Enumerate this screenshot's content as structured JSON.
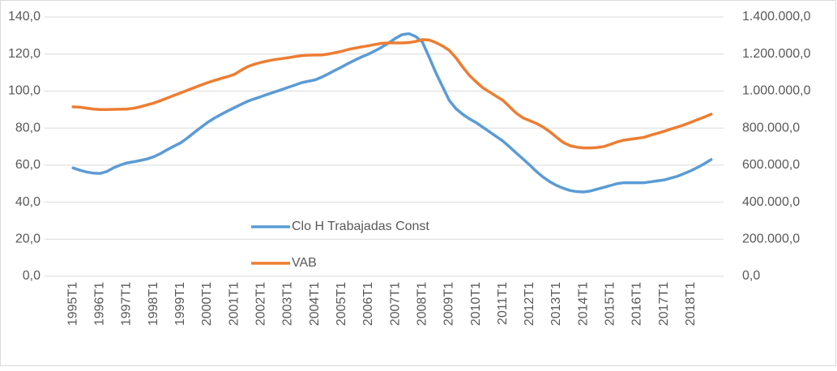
{
  "chart_data": {
    "type": "line",
    "categories": [
      "1995T1",
      null,
      null,
      null,
      "1996T1",
      null,
      null,
      null,
      "1997T1",
      null,
      null,
      null,
      "1998T1",
      null,
      null,
      null,
      "1999T1",
      null,
      null,
      null,
      "2000T1",
      null,
      null,
      null,
      "2001T1",
      null,
      null,
      null,
      "2002T1",
      null,
      null,
      null,
      "2003T1",
      null,
      null,
      null,
      "2004T1",
      null,
      null,
      null,
      "2005T1",
      null,
      null,
      null,
      "2006T1",
      null,
      null,
      null,
      "2007T1",
      null,
      null,
      null,
      "2008T1",
      null,
      null,
      null,
      "2009T1",
      null,
      null,
      null,
      "2010T1",
      null,
      null,
      null,
      "2011T1",
      null,
      null,
      null,
      "2012T1",
      null,
      null,
      null,
      "2013T1",
      null,
      null,
      null,
      "2014T1",
      null,
      null,
      null,
      "2015T1",
      null,
      null,
      null,
      "2016T1",
      null,
      null,
      null,
      "2017T1",
      null,
      null,
      null,
      "2018T1",
      null,
      null,
      null
    ],
    "series": [
      {
        "name": "Clo H Trabajadas Const",
        "color": "#5b9bd5",
        "values": [
          58.5,
          57.3,
          56.3,
          55.7,
          55.5,
          56.5,
          58.5,
          60.0,
          61.2,
          61.8,
          62.5,
          63.3,
          64.5,
          66.2,
          68.3,
          70.2,
          72.0,
          74.6,
          77.5,
          80.3,
          83.0,
          85.3,
          87.3,
          89.2,
          91.0,
          92.8,
          94.5,
          95.8,
          97.0,
          98.3,
          99.5,
          100.7,
          102.0,
          103.2,
          104.5,
          105.3,
          106.0,
          107.5,
          109.3,
          111.2,
          113.0,
          115.0,
          116.8,
          118.5,
          120.0,
          121.8,
          123.8,
          126.0,
          128.5,
          130.5,
          131.0,
          129.5,
          126.5,
          118.5,
          110.0,
          102.5,
          95.0,
          90.5,
          87.5,
          85.0,
          83.0,
          80.5,
          78.0,
          75.5,
          73.0,
          69.8,
          66.5,
          63.3,
          60.0,
          56.5,
          53.5,
          51.0,
          49.0,
          47.5,
          46.3,
          45.7,
          45.5,
          46.0,
          47.0,
          48.0,
          49.0,
          50.0,
          50.5,
          50.5,
          50.5,
          50.5,
          51.0,
          51.5,
          52.0,
          53.0,
          54.0,
          55.5,
          57.0,
          58.8,
          60.8,
          63.0
        ]
      },
      {
        "name": "VAB",
        "color": "#ed7d31",
        "axis": "y2",
        "values": [
          915000,
          913000,
          908000,
          903000,
          900000,
          900000,
          901000,
          902000,
          903000,
          907000,
          915000,
          925000,
          935000,
          948000,
          962000,
          976000,
          990000,
          1004000,
          1018000,
          1032000,
          1045000,
          1057000,
          1068000,
          1078000,
          1090000,
          1112000,
          1132000,
          1145000,
          1155000,
          1163000,
          1170000,
          1175000,
          1180000,
          1186000,
          1191000,
          1194000,
          1195000,
          1195000,
          1200000,
          1207000,
          1215000,
          1225000,
          1232000,
          1239000,
          1245000,
          1252000,
          1258000,
          1260000,
          1260000,
          1260000,
          1262000,
          1268000,
          1278000,
          1276000,
          1262000,
          1244000,
          1220000,
          1180000,
          1130000,
          1085000,
          1050000,
          1018000,
          995000,
          972000,
          950000,
          915000,
          880000,
          855000,
          840000,
          825000,
          805000,
          780000,
          750000,
          722000,
          705000,
          697000,
          693000,
          693000,
          695000,
          700000,
          712000,
          725000,
          735000,
          740000,
          745000,
          750000,
          762000,
          772000,
          783000,
          795000,
          806000,
          818000,
          832000,
          846000,
          860000,
          875000
        ]
      }
    ],
    "ylim": [
      0,
      140
    ],
    "yticks": [
      {
        "value": 0,
        "label": "0,0"
      },
      {
        "value": 20,
        "label": "20,0"
      },
      {
        "value": 40,
        "label": "40,0"
      },
      {
        "value": 60,
        "label": "60,0"
      },
      {
        "value": 80,
        "label": "80,0"
      },
      {
        "value": 100,
        "label": "100,0"
      },
      {
        "value": 120,
        "label": "120,0"
      },
      {
        "value": 140,
        "label": "140,0"
      }
    ],
    "y2lim": [
      0,
      1400000
    ],
    "y2ticks": [
      {
        "value": 0,
        "label": "0,0"
      },
      {
        "value": 200000,
        "label": "200.000,0"
      },
      {
        "value": 400000,
        "label": "400.000,0"
      },
      {
        "value": 600000,
        "label": "600.000,0"
      },
      {
        "value": 800000,
        "label": "800.000,0"
      },
      {
        "value": 1000000,
        "label": "1.000.000,0"
      },
      {
        "value": 1200000,
        "label": "1.200.000,0"
      },
      {
        "value": 1400000,
        "label": "1.400.000,0"
      }
    ],
    "grid": true
  }
}
